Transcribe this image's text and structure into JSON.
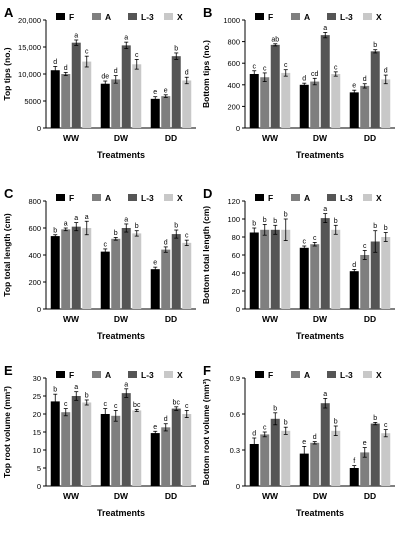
{
  "figure": {
    "colors": {
      "F": "#000000",
      "A": "#7f7f7f",
      "L-3": "#555555",
      "X": "#c8c8c8"
    }
  },
  "chart_data": [
    {
      "panel": "A",
      "type": "bar",
      "ylabel": "Top tips (no.)",
      "xlabel": "Treatments",
      "categories": [
        "WW",
        "DW",
        "DD"
      ],
      "ylim": [
        0,
        20000
      ],
      "yticks": [
        0,
        5000,
        10000,
        15000,
        20000
      ],
      "ytick_labels": [
        "0",
        "5000",
        "10,000",
        "15,000",
        "20,000"
      ],
      "series": [
        {
          "name": "F",
          "values": [
            10700,
            8200,
            5400
          ],
          "errors": [
            700,
            500,
            400
          ],
          "letters": [
            "d",
            "de",
            "e"
          ]
        },
        {
          "name": "A",
          "values": [
            10000,
            9000,
            5900
          ],
          "errors": [
            300,
            700,
            250
          ],
          "letters": [
            "d",
            "d",
            "e"
          ]
        },
        {
          "name": "L-3",
          "values": [
            15800,
            15300,
            13300
          ],
          "errors": [
            500,
            600,
            600
          ],
          "letters": [
            "a",
            "a",
            "b"
          ]
        },
        {
          "name": "X",
          "values": [
            12300,
            11800,
            8800
          ],
          "errors": [
            1000,
            900,
            600
          ],
          "letters": [
            "c",
            "c",
            "d"
          ]
        }
      ]
    },
    {
      "panel": "B",
      "type": "bar",
      "ylabel": "Bottom tips (no.)",
      "xlabel": "Treatments",
      "categories": [
        "WW",
        "DW",
        "DD"
      ],
      "ylim": [
        0,
        1000
      ],
      "yticks": [
        0,
        200,
        400,
        600,
        800,
        1000
      ],
      "ytick_labels": [
        "0",
        "200",
        "400",
        "600",
        "800",
        "1000"
      ],
      "series": [
        {
          "name": "F",
          "values": [
            500,
            400,
            330
          ],
          "errors": [
            30,
            15,
            20
          ],
          "letters": [
            "c",
            "d",
            "e"
          ]
        },
        {
          "name": "A",
          "values": [
            470,
            430,
            390
          ],
          "errors": [
            40,
            30,
            20
          ],
          "letters": [
            "c",
            "cd",
            "d"
          ]
        },
        {
          "name": "L-3",
          "values": [
            770,
            860,
            710
          ],
          "errors": [
            10,
            25,
            15
          ],
          "letters": [
            "ab",
            "a",
            "b"
          ]
        },
        {
          "name": "X",
          "values": [
            510,
            500,
            450
          ],
          "errors": [
            30,
            20,
            40
          ],
          "letters": [
            "c",
            "c",
            "d"
          ]
        }
      ]
    },
    {
      "panel": "C",
      "type": "bar",
      "ylabel": "Top total length (cm)",
      "xlabel": "Treatments",
      "categories": [
        "WW",
        "DW",
        "DD"
      ],
      "ylim": [
        0,
        800
      ],
      "yticks": [
        0,
        200,
        400,
        600,
        800
      ],
      "ytick_labels": [
        "0",
        "200",
        "400",
        "600",
        "800"
      ],
      "series": [
        {
          "name": "F",
          "values": [
            540,
            425,
            295
          ],
          "errors": [
            10,
            20,
            15
          ],
          "letters": [
            "b",
            "c",
            "e"
          ]
        },
        {
          "name": "A",
          "values": [
            590,
            520,
            440
          ],
          "errors": [
            10,
            10,
            20
          ],
          "letters": [
            "a",
            "b",
            "d"
          ]
        },
        {
          "name": "L-3",
          "values": [
            610,
            600,
            555
          ],
          "errors": [
            30,
            30,
            30
          ],
          "letters": [
            "a",
            "a",
            "b"
          ]
        },
        {
          "name": "X",
          "values": [
            600,
            560,
            490
          ],
          "errors": [
            50,
            20,
            20
          ],
          "letters": [
            "a",
            "b",
            "c"
          ]
        }
      ]
    },
    {
      "panel": "D",
      "type": "bar",
      "ylabel": "Bottom total length (cm)",
      "xlabel": "Treatments",
      "categories": [
        "WW",
        "DW",
        "DD"
      ],
      "ylim": [
        0,
        120
      ],
      "yticks": [
        0,
        20,
        40,
        60,
        80,
        100,
        120
      ],
      "ytick_labels": [
        "0",
        "20",
        "40",
        "60",
        "80",
        "100",
        "120"
      ],
      "series": [
        {
          "name": "F",
          "values": [
            85,
            68,
            42
          ],
          "errors": [
            5,
            2,
            2
          ],
          "letters": [
            "b",
            "c",
            "d"
          ]
        },
        {
          "name": "A",
          "values": [
            88,
            72,
            60
          ],
          "errors": [
            6,
            2,
            5
          ],
          "letters": [
            "b",
            "c",
            "c"
          ]
        },
        {
          "name": "L-3",
          "values": [
            88,
            101,
            75
          ],
          "errors": [
            5,
            5,
            12
          ],
          "letters": [
            "b",
            "a",
            "b"
          ]
        },
        {
          "name": "X",
          "values": [
            88,
            88,
            80
          ],
          "errors": [
            12,
            5,
            5
          ],
          "letters": [
            "b",
            "b",
            "b"
          ]
        }
      ]
    },
    {
      "panel": "E",
      "type": "bar",
      "ylabel": "Top root volume (mm³)",
      "xlabel": "Treatments",
      "categories": [
        "WW",
        "DW",
        "DD"
      ],
      "ylim": [
        0,
        30
      ],
      "yticks": [
        0,
        5,
        10,
        15,
        20,
        25,
        30
      ],
      "ytick_labels": [
        "0",
        "5",
        "10",
        "15",
        "20",
        "25",
        "30"
      ],
      "series": [
        {
          "name": "F",
          "values": [
            23.5,
            20,
            14.7
          ],
          "errors": [
            2,
            1.5,
            0.5
          ],
          "letters": [
            "b",
            "c",
            "e"
          ]
        },
        {
          "name": "A",
          "values": [
            20.5,
            19.5,
            16.3
          ],
          "errors": [
            1,
            1.5,
            1
          ],
          "letters": [
            "c",
            "c",
            "d"
          ]
        },
        {
          "name": "L-3",
          "values": [
            25,
            25.8,
            21.5
          ],
          "errors": [
            1.2,
            1.2,
            0.5
          ],
          "letters": [
            "a",
            "a",
            "bc"
          ]
        },
        {
          "name": "X",
          "values": [
            23.2,
            21,
            20
          ],
          "errors": [
            0.7,
            0.3,
            1
          ],
          "letters": [
            "b",
            "bc",
            "c"
          ]
        }
      ]
    },
    {
      "panel": "F",
      "type": "bar",
      "ylabel": "Bottom root volume (mm³)",
      "xlabel": "Treatments",
      "categories": [
        "WW",
        "DW",
        "DD"
      ],
      "ylim": [
        0,
        0.9
      ],
      "yticks": [
        0,
        0.3,
        0.6,
        0.9
      ],
      "ytick_labels": [
        "0",
        "0.3",
        "0.6",
        "0.9"
      ],
      "series": [
        {
          "name": "F",
          "values": [
            0.35,
            0.27,
            0.15
          ],
          "errors": [
            0.05,
            0.06,
            0.02
          ],
          "letters": [
            "d",
            "e",
            "f"
          ]
        },
        {
          "name": "A",
          "values": [
            0.43,
            0.36,
            0.28
          ],
          "errors": [
            0.02,
            0.01,
            0.04
          ],
          "letters": [
            "c",
            "d",
            "e"
          ]
        },
        {
          "name": "L-3",
          "values": [
            0.56,
            0.69,
            0.52
          ],
          "errors": [
            0.05,
            0.04,
            0.01
          ],
          "letters": [
            "b",
            "a",
            "b"
          ]
        },
        {
          "name": "X",
          "values": [
            0.46,
            0.46,
            0.44
          ],
          "errors": [
            0.03,
            0.04,
            0.03
          ],
          "letters": [
            "b",
            "b",
            "c"
          ]
        }
      ]
    }
  ]
}
